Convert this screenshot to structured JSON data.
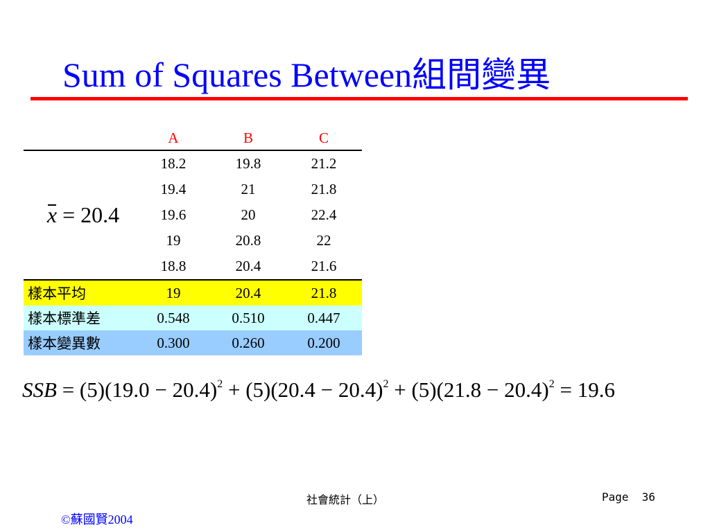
{
  "title": "Sum of Squares Between組間變異",
  "table": {
    "headers": [
      "A",
      "B",
      "C"
    ],
    "rows": [
      [
        "18.2",
        "19.8",
        "21.2"
      ],
      [
        "19.4",
        "21",
        "21.8"
      ],
      [
        "19.6",
        "20",
        "22.4"
      ],
      [
        "19",
        "20.8",
        "22"
      ],
      [
        "18.8",
        "20.4",
        "21.6"
      ]
    ],
    "grand_mean": {
      "symbol": "x",
      "equals": "=",
      "value": "20.4"
    },
    "stats": [
      {
        "label": "樣本平均",
        "values": [
          "19",
          "20.4",
          "21.8"
        ],
        "color": "#ffff00"
      },
      {
        "label": "樣本標準差",
        "values": [
          "0.548",
          "0.510",
          "0.447"
        ],
        "color": "#ccffff"
      },
      {
        "label": "樣本變異數",
        "values": [
          "0.300",
          "0.260",
          "0.200"
        ],
        "color": "#99ccff"
      }
    ]
  },
  "formula": {
    "lhs": "SSB",
    "eq": " = ",
    "t1": "(5)(19.0 − 20.4)",
    "plus1": " + ",
    "t2": "(5)(20.4 − 20.4)",
    "plus2": " + ",
    "t3": "(5)(21.8 − 20.4)",
    "exp": "2",
    "result": " = 19.6"
  },
  "footer": {
    "course": "社會統計（上）",
    "page": "Page  36",
    "copyright": "©蘇國賢2004"
  }
}
